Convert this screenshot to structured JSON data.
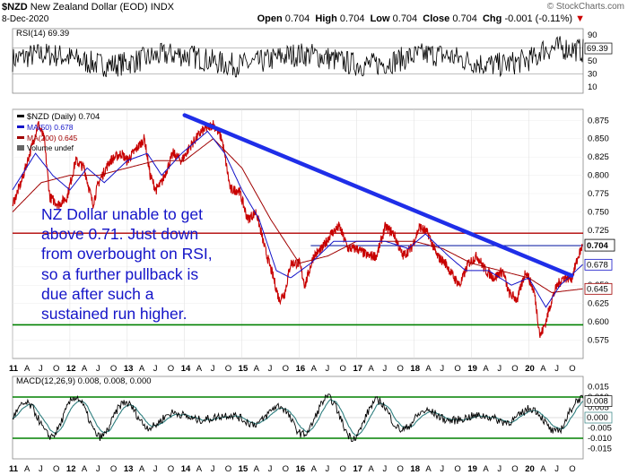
{
  "header": {
    "title_symbol": "$NZD",
    "title_name": "New Zealand Dollar (EOD)",
    "title_exchange": "INDX",
    "date": "8-Dec-2020",
    "open_label": "Open",
    "open": "0.704",
    "high_label": "High",
    "high": "0.704",
    "low_label": "Low",
    "low": "0.704",
    "close_label": "Close",
    "close": "0.704",
    "chg_label": "Chg",
    "chg": "-0.001 (-0.11%)",
    "watermark": "© StockCharts.com"
  },
  "annotation": {
    "lines": [
      "NZ Dollar unable to get",
      "above 0.71. Just down",
      "from overbought on RSI,",
      "so a further pullback is",
      "due after such a",
      "sustained run higher."
    ],
    "color": "#1414c8"
  },
  "colors": {
    "price": "#c80000",
    "ma50": "#1414c8",
    "ma200": "#a00000",
    "trendline": "#1f2ee8",
    "support": "#008000",
    "resistance": "#b00000",
    "macd_signal": "#2f7f7f"
  },
  "chart_data": [
    {
      "type": "line",
      "panel": "rsi",
      "legend": "RSI(14) 69.39",
      "last_value_label": "69.39",
      "ylim": [
        0,
        100
      ],
      "yticks": [
        "90",
        "70",
        "50",
        "30",
        "10"
      ],
      "series": [
        {
          "name": "RSI(14)",
          "last": 69.39
        }
      ]
    },
    {
      "type": "line",
      "panel": "price",
      "legend": [
        "$NZD (Daily) 0.704",
        "MA(50) 0.678",
        "MA(200) 0.645",
        "Volume undef"
      ],
      "ylim": [
        0.55,
        0.89
      ],
      "yticks": [
        "0.875",
        "0.850",
        "0.825",
        "0.800",
        "0.775",
        "0.750",
        "0.725",
        "0.700",
        "0.675",
        "0.650",
        "0.625",
        "0.600",
        "0.575"
      ],
      "last_value_labels": [
        "0.704",
        "0.678",
        "0.645"
      ],
      "x_year_labels": [
        "11",
        "12",
        "13",
        "14",
        "15",
        "16",
        "17",
        "18",
        "19",
        "20"
      ],
      "x_month_labels": [
        "A",
        "J",
        "O"
      ],
      "x_range": [
        2011.0,
        2020.95
      ],
      "price_points": [
        [
          2011.0,
          0.76
        ],
        [
          2011.15,
          0.79
        ],
        [
          2011.3,
          0.83
        ],
        [
          2011.45,
          0.87
        ],
        [
          2011.55,
          0.85
        ],
        [
          2011.65,
          0.77
        ],
        [
          2011.8,
          0.76
        ],
        [
          2011.95,
          0.77
        ],
        [
          2012.1,
          0.82
        ],
        [
          2012.25,
          0.81
        ],
        [
          2012.4,
          0.76
        ],
        [
          2012.5,
          0.79
        ],
        [
          2012.7,
          0.82
        ],
        [
          2012.9,
          0.83
        ],
        [
          2013.0,
          0.82
        ],
        [
          2013.2,
          0.84
        ],
        [
          2013.3,
          0.85
        ],
        [
          2013.4,
          0.8
        ],
        [
          2013.5,
          0.78
        ],
        [
          2013.6,
          0.79
        ],
        [
          2013.8,
          0.83
        ],
        [
          2013.95,
          0.82
        ],
        [
          2014.1,
          0.84
        ],
        [
          2014.3,
          0.86
        ],
        [
          2014.5,
          0.87
        ],
        [
          2014.65,
          0.85
        ],
        [
          2014.8,
          0.78
        ],
        [
          2014.95,
          0.78
        ],
        [
          2015.1,
          0.74
        ],
        [
          2015.25,
          0.75
        ],
        [
          2015.4,
          0.7
        ],
        [
          2015.55,
          0.66
        ],
        [
          2015.65,
          0.63
        ],
        [
          2015.75,
          0.64
        ],
        [
          2015.85,
          0.68
        ],
        [
          2016.0,
          0.68
        ],
        [
          2016.1,
          0.65
        ],
        [
          2016.25,
          0.69
        ],
        [
          2016.4,
          0.7
        ],
        [
          2016.55,
          0.72
        ],
        [
          2016.7,
          0.73
        ],
        [
          2016.85,
          0.7
        ],
        [
          2017.0,
          0.7
        ],
        [
          2017.2,
          0.69
        ],
        [
          2017.35,
          0.69
        ],
        [
          2017.5,
          0.73
        ],
        [
          2017.65,
          0.72
        ],
        [
          2017.8,
          0.69
        ],
        [
          2017.95,
          0.7
        ],
        [
          2018.1,
          0.73
        ],
        [
          2018.25,
          0.72
        ],
        [
          2018.4,
          0.69
        ],
        [
          2018.55,
          0.68
        ],
        [
          2018.7,
          0.66
        ],
        [
          2018.8,
          0.65
        ],
        [
          2018.95,
          0.68
        ],
        [
          2019.1,
          0.69
        ],
        [
          2019.25,
          0.67
        ],
        [
          2019.4,
          0.66
        ],
        [
          2019.55,
          0.67
        ],
        [
          2019.65,
          0.64
        ],
        [
          2019.8,
          0.63
        ],
        [
          2019.95,
          0.67
        ],
        [
          2020.1,
          0.64
        ],
        [
          2020.2,
          0.58
        ],
        [
          2020.3,
          0.6
        ],
        [
          2020.4,
          0.63
        ],
        [
          2020.5,
          0.65
        ],
        [
          2020.6,
          0.66
        ],
        [
          2020.75,
          0.66
        ],
        [
          2020.87,
          0.69
        ],
        [
          2020.94,
          0.704
        ]
      ],
      "ma50_points": [
        [
          2011.0,
          0.78
        ],
        [
          2011.4,
          0.83
        ],
        [
          2011.7,
          0.8
        ],
        [
          2012.0,
          0.78
        ],
        [
          2012.3,
          0.81
        ],
        [
          2012.6,
          0.79
        ],
        [
          2013.0,
          0.82
        ],
        [
          2013.35,
          0.83
        ],
        [
          2013.6,
          0.8
        ],
        [
          2013.95,
          0.83
        ],
        [
          2014.4,
          0.86
        ],
        [
          2014.7,
          0.83
        ],
        [
          2015.0,
          0.78
        ],
        [
          2015.3,
          0.74
        ],
        [
          2015.6,
          0.67
        ],
        [
          2015.85,
          0.66
        ],
        [
          2016.2,
          0.68
        ],
        [
          2016.6,
          0.71
        ],
        [
          2017.0,
          0.71
        ],
        [
          2017.5,
          0.71
        ],
        [
          2017.9,
          0.7
        ],
        [
          2018.2,
          0.72
        ],
        [
          2018.6,
          0.69
        ],
        [
          2018.9,
          0.67
        ],
        [
          2019.3,
          0.67
        ],
        [
          2019.7,
          0.65
        ],
        [
          2020.0,
          0.66
        ],
        [
          2020.3,
          0.62
        ],
        [
          2020.55,
          0.65
        ],
        [
          2020.94,
          0.678
        ]
      ],
      "ma200_points": [
        [
          2011.0,
          0.75
        ],
        [
          2011.5,
          0.79
        ],
        [
          2012.0,
          0.8
        ],
        [
          2012.5,
          0.8
        ],
        [
          2013.0,
          0.81
        ],
        [
          2013.5,
          0.82
        ],
        [
          2014.0,
          0.82
        ],
        [
          2014.5,
          0.85
        ],
        [
          2015.0,
          0.81
        ],
        [
          2015.5,
          0.74
        ],
        [
          2016.0,
          0.68
        ],
        [
          2016.5,
          0.69
        ],
        [
          2017.0,
          0.71
        ],
        [
          2017.5,
          0.71
        ],
        [
          2018.0,
          0.71
        ],
        [
          2018.5,
          0.7
        ],
        [
          2019.0,
          0.68
        ],
        [
          2019.5,
          0.67
        ],
        [
          2020.0,
          0.66
        ],
        [
          2020.4,
          0.64
        ],
        [
          2020.94,
          0.645
        ]
      ],
      "trendline": [
        [
          2014.0,
          0.882
        ],
        [
          2020.75,
          0.663
        ]
      ],
      "support_line": 0.596,
      "upper_line": 0.721,
      "resistance_dark": 0.704
    },
    {
      "type": "line",
      "panel": "macd",
      "legend": "MACD(12,26,9) 0.008, 0.008, 0.000",
      "ylim": [
        -0.02,
        0.02
      ],
      "yticks": [
        "0.015",
        "0.010",
        "0.005",
        "0.000",
        "-0.005",
        "-0.010",
        "-0.015"
      ],
      "last_value_labels": [
        "0.008",
        "0.000"
      ],
      "reference_lines": [
        0.01,
        -0.01
      ]
    }
  ]
}
